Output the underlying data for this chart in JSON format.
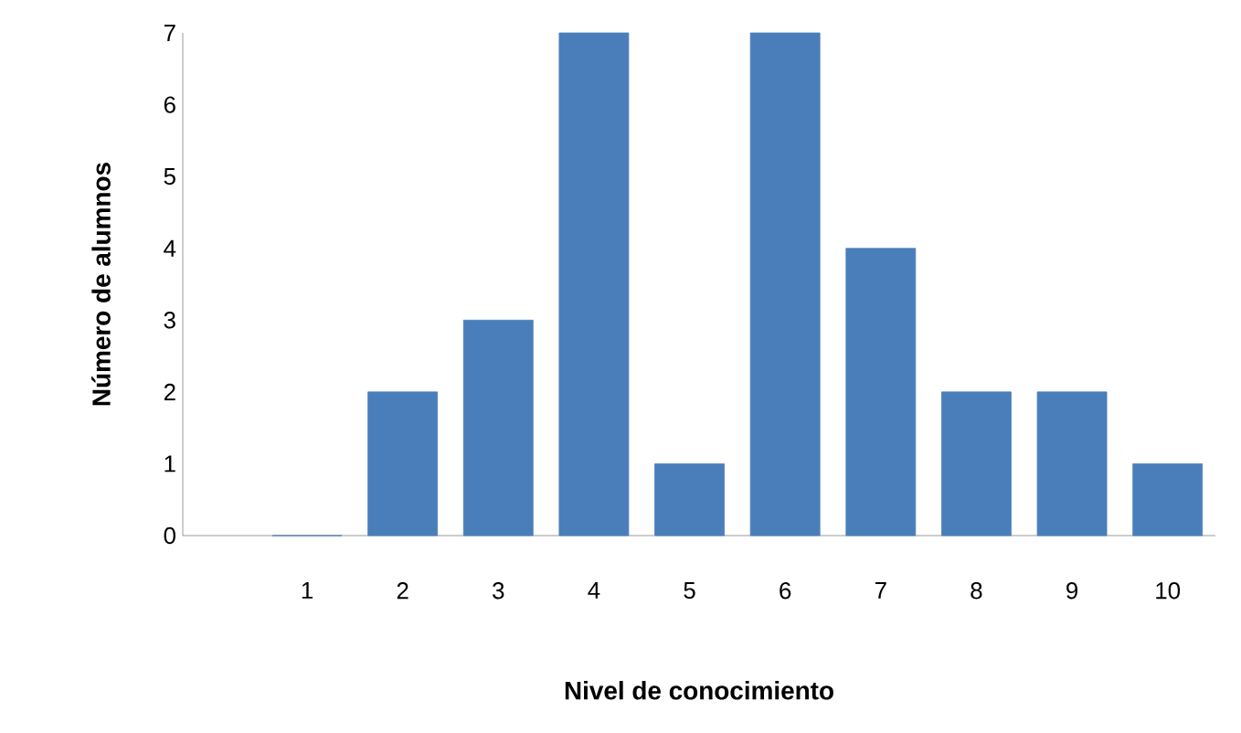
{
  "chart_data": {
    "type": "bar",
    "xlabel": "Nivel de conocimiento",
    "ylabel": "Número de alumnos",
    "categories": [
      "1",
      "2",
      "3",
      "4",
      "5",
      "6",
      "7",
      "8",
      "9",
      "10"
    ],
    "values": [
      0,
      2,
      3,
      7,
      1,
      7,
      4,
      2,
      2,
      1
    ],
    "color": "#4a7ebb",
    "ylim": [
      0,
      7
    ],
    "yticks": [
      0,
      1,
      2,
      3,
      4,
      5,
      6,
      7
    ],
    "grid": false
  }
}
